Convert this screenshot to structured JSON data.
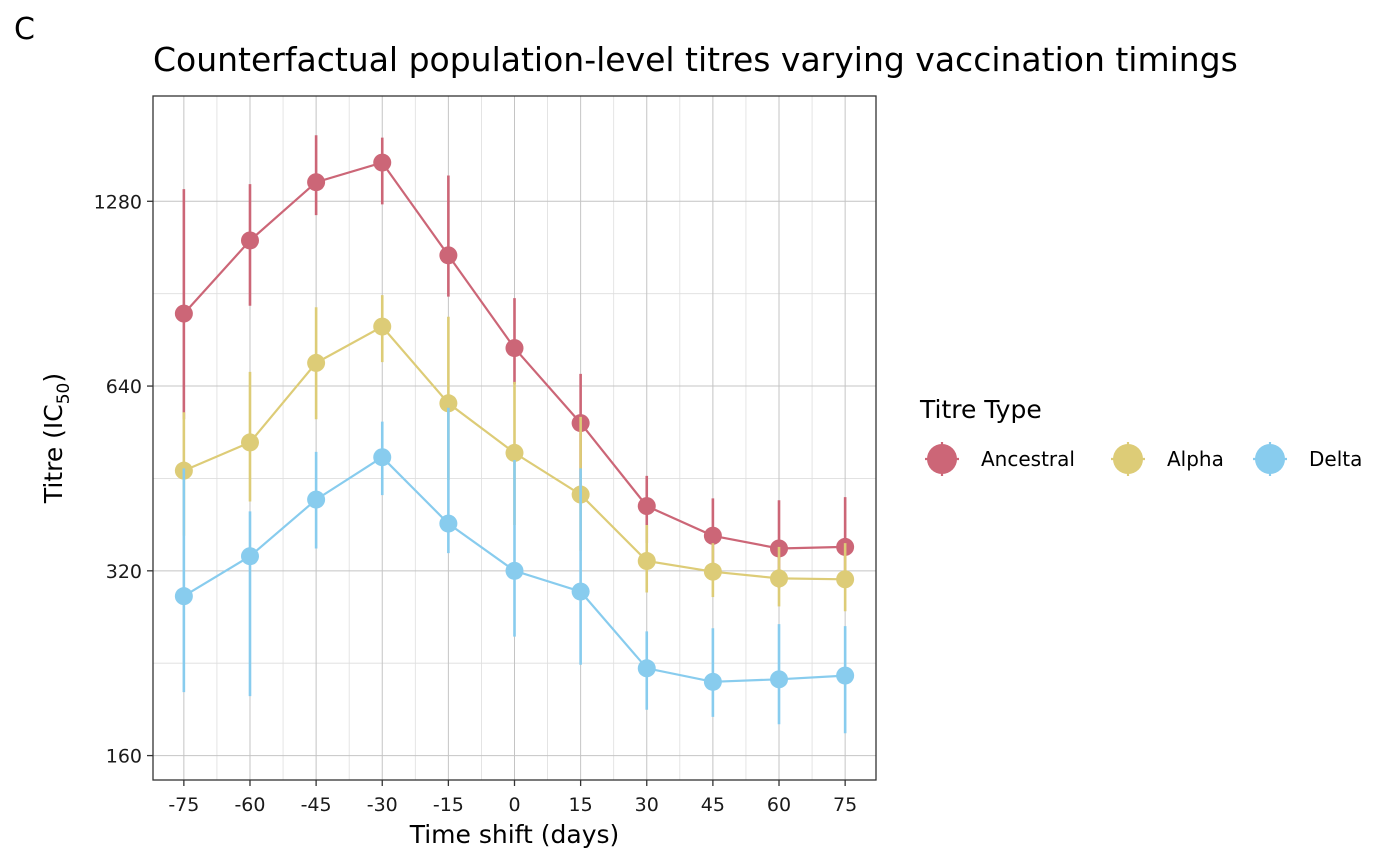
{
  "panel_label": "C",
  "chart_data": {
    "type": "line",
    "title": "Counterfactual population-level titres varying vaccination timings",
    "xlabel": "Time shift (days)",
    "ylabel_main": "Titre (IC",
    "ylabel_sub": "50",
    "ylabel_end": ")",
    "y_scale": "log2",
    "ylim": [
      146,
      1900
    ],
    "y_ticks": [
      160,
      320,
      640,
      1280
    ],
    "x_ticks": [
      -75,
      -60,
      -45,
      -30,
      -15,
      0,
      15,
      30,
      45,
      60,
      75
    ],
    "xlim": [
      -82,
      82
    ],
    "grid": true,
    "legend": {
      "title": "Titre Type",
      "position": "right"
    },
    "series": [
      {
        "name": "Ancestral",
        "color": "#CC6677",
        "points": [
          {
            "x": -75,
            "y": 840,
            "lo": 565,
            "hi": 1340
          },
          {
            "x": -60,
            "y": 1105,
            "lo": 865,
            "hi": 1365
          },
          {
            "x": -45,
            "y": 1375,
            "lo": 1215,
            "hi": 1640
          },
          {
            "x": -30,
            "y": 1480,
            "lo": 1265,
            "hi": 1625
          },
          {
            "x": -15,
            "y": 1045,
            "lo": 895,
            "hi": 1410
          },
          {
            "x": 0,
            "y": 738,
            "lo": 645,
            "hi": 890
          },
          {
            "x": 15,
            "y": 557,
            "lo": 440,
            "hi": 670
          },
          {
            "x": 30,
            "y": 408,
            "lo": 355,
            "hi": 457
          },
          {
            "x": 45,
            "y": 365,
            "lo": 318,
            "hi": 420
          },
          {
            "x": 60,
            "y": 348,
            "lo": 300,
            "hi": 417
          },
          {
            "x": 75,
            "y": 350,
            "lo": 300,
            "hi": 422
          }
        ]
      },
      {
        "name": "Alpha",
        "color": "#DDCC77",
        "points": [
          {
            "x": -75,
            "y": 466,
            "lo": 365,
            "hi": 580
          },
          {
            "x": -60,
            "y": 518,
            "lo": 415,
            "hi": 675
          },
          {
            "x": -45,
            "y": 698,
            "lo": 565,
            "hi": 860
          },
          {
            "x": -30,
            "y": 800,
            "lo": 700,
            "hi": 900
          },
          {
            "x": -15,
            "y": 600,
            "lo": 450,
            "hi": 830
          },
          {
            "x": 0,
            "y": 498,
            "lo": 380,
            "hi": 650
          },
          {
            "x": 15,
            "y": 426,
            "lo": 345,
            "hi": 570
          },
          {
            "x": 30,
            "y": 332,
            "lo": 295,
            "hi": 380
          },
          {
            "x": 45,
            "y": 319,
            "lo": 290,
            "hi": 355
          },
          {
            "x": 60,
            "y": 311,
            "lo": 280,
            "hi": 350
          },
          {
            "x": 75,
            "y": 310,
            "lo": 275,
            "hi": 355
          }
        ]
      },
      {
        "name": "Delta",
        "color": "#88CCEE",
        "points": [
          {
            "x": -75,
            "y": 291,
            "lo": 203,
            "hi": 470
          },
          {
            "x": -60,
            "y": 338,
            "lo": 200,
            "hi": 400
          },
          {
            "x": -45,
            "y": 418,
            "lo": 348,
            "hi": 500
          },
          {
            "x": -30,
            "y": 490,
            "lo": 425,
            "hi": 560
          },
          {
            "x": -15,
            "y": 382,
            "lo": 342,
            "hi": 590
          },
          {
            "x": 0,
            "y": 320,
            "lo": 250,
            "hi": 485
          },
          {
            "x": 15,
            "y": 296,
            "lo": 225,
            "hi": 470
          },
          {
            "x": 30,
            "y": 222,
            "lo": 190,
            "hi": 255
          },
          {
            "x": 45,
            "y": 211,
            "lo": 185,
            "hi": 258
          },
          {
            "x": 60,
            "y": 213,
            "lo": 180,
            "hi": 262
          },
          {
            "x": 75,
            "y": 216,
            "lo": 174,
            "hi": 260
          }
        ]
      }
    ]
  }
}
